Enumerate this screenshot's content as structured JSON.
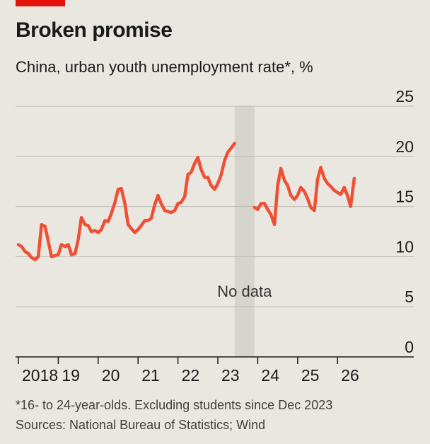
{
  "header": {
    "title": "Broken promise",
    "subtitle": "China, urban youth unemployment rate*, %"
  },
  "footer": {
    "footnote": "*16- to 24-year-olds. Excluding students since Dec 2023",
    "source": "Sources: National Bureau of Statistics; Wind"
  },
  "colors": {
    "accent": "#e3120b",
    "line": "#ef4f34",
    "gap_band": "#d6d4cd",
    "grid": "#bab8b1",
    "background": "#e9e7e0"
  },
  "chart_data": {
    "type": "line",
    "title": "Broken promise",
    "subtitle": "China, urban youth unemployment rate*, %",
    "ylim": [
      0,
      25
    ],
    "yticks": [
      0,
      5,
      10,
      15,
      20,
      25
    ],
    "y_axis_position": "right",
    "grid": true,
    "xlim": [
      2018.0,
      2026.9
    ],
    "xticks": [
      {
        "label": "2018",
        "x": 2018
      },
      {
        "label": "19",
        "x": 2019
      },
      {
        "label": "20",
        "x": 2020
      },
      {
        "label": "21",
        "x": 2021
      },
      {
        "label": "22",
        "x": 2022
      },
      {
        "label": "23",
        "x": 2023
      },
      {
        "label": "24",
        "x": 2024
      },
      {
        "label": "25",
        "x": 2025
      },
      {
        "label": "26",
        "x": 2026
      }
    ],
    "annotations": [
      {
        "text": "No data",
        "x_start": 2023.42,
        "x_end": 2023.92
      }
    ],
    "series": [
      {
        "segments": [
          [
            [
              2018.0,
              11.2
            ],
            [
              2018.08,
              11.0
            ],
            [
              2018.17,
              10.5
            ],
            [
              2018.25,
              10.3
            ],
            [
              2018.33,
              9.9
            ],
            [
              2018.42,
              9.7
            ],
            [
              2018.5,
              10.0
            ],
            [
              2018.58,
              13.2
            ],
            [
              2018.67,
              13.0
            ],
            [
              2018.75,
              11.5
            ],
            [
              2018.83,
              10.0
            ],
            [
              2018.92,
              10.1
            ],
            [
              2019.0,
              10.2
            ],
            [
              2019.08,
              11.2
            ],
            [
              2019.17,
              11.0
            ],
            [
              2019.25,
              11.2
            ],
            [
              2019.33,
              10.2
            ],
            [
              2019.42,
              10.3
            ],
            [
              2019.5,
              11.7
            ],
            [
              2019.58,
              13.9
            ],
            [
              2019.67,
              13.2
            ],
            [
              2019.75,
              13.1
            ],
            [
              2019.83,
              12.5
            ],
            [
              2019.92,
              12.6
            ],
            [
              2020.0,
              12.4
            ],
            [
              2020.08,
              12.7
            ],
            [
              2020.17,
              13.6
            ],
            [
              2020.25,
              13.5
            ],
            [
              2020.33,
              14.3
            ],
            [
              2020.42,
              15.4
            ],
            [
              2020.5,
              16.7
            ],
            [
              2020.58,
              16.8
            ],
            [
              2020.67,
              15.3
            ],
            [
              2020.75,
              13.2
            ],
            [
              2020.83,
              12.8
            ],
            [
              2020.92,
              12.4
            ],
            [
              2021.0,
              12.7
            ],
            [
              2021.08,
              13.1
            ],
            [
              2021.17,
              13.6
            ],
            [
              2021.25,
              13.6
            ],
            [
              2021.33,
              13.8
            ],
            [
              2021.42,
              15.2
            ],
            [
              2021.5,
              16.1
            ],
            [
              2021.58,
              15.3
            ],
            [
              2021.67,
              14.6
            ],
            [
              2021.75,
              14.5
            ],
            [
              2021.83,
              14.4
            ],
            [
              2021.92,
              14.6
            ],
            [
              2022.0,
              15.3
            ],
            [
              2022.08,
              15.4
            ],
            [
              2022.17,
              16.0
            ],
            [
              2022.25,
              18.2
            ],
            [
              2022.33,
              18.4
            ],
            [
              2022.42,
              19.3
            ],
            [
              2022.5,
              19.9
            ],
            [
              2022.58,
              18.7
            ],
            [
              2022.67,
              17.9
            ],
            [
              2022.75,
              17.9
            ],
            [
              2022.83,
              17.1
            ],
            [
              2022.92,
              16.7
            ],
            [
              2023.0,
              17.3
            ],
            [
              2023.08,
              18.1
            ],
            [
              2023.17,
              19.6
            ],
            [
              2023.25,
              20.4
            ],
            [
              2023.33,
              20.8
            ],
            [
              2023.42,
              21.3
            ]
          ],
          [
            [
              2023.92,
              14.9
            ],
            [
              2024.0,
              14.7
            ],
            [
              2024.08,
              15.3
            ],
            [
              2024.17,
              15.3
            ],
            [
              2024.25,
              14.7
            ],
            [
              2024.33,
              14.2
            ],
            [
              2024.42,
              13.2
            ],
            [
              2024.5,
              17.1
            ],
            [
              2024.58,
              18.8
            ],
            [
              2024.67,
              17.6
            ],
            [
              2024.75,
              17.1
            ],
            [
              2024.83,
              16.1
            ],
            [
              2024.92,
              15.7
            ],
            [
              2025.0,
              16.1
            ],
            [
              2025.08,
              16.9
            ],
            [
              2025.17,
              16.5
            ],
            [
              2025.25,
              15.8
            ],
            [
              2025.33,
              14.9
            ],
            [
              2025.42,
              14.6
            ],
            [
              2025.5,
              17.7
            ],
            [
              2025.58,
              18.9
            ],
            [
              2025.67,
              17.8
            ],
            [
              2025.75,
              17.3
            ],
            [
              2025.83,
              17.0
            ],
            [
              2025.92,
              16.6
            ],
            [
              2026.0,
              16.4
            ],
            [
              2026.08,
              16.2
            ],
            [
              2026.17,
              16.9
            ],
            [
              2026.25,
              16.1
            ],
            [
              2026.33,
              15.0
            ],
            [
              2026.42,
              17.8
            ]
          ]
        ]
      }
    ]
  }
}
